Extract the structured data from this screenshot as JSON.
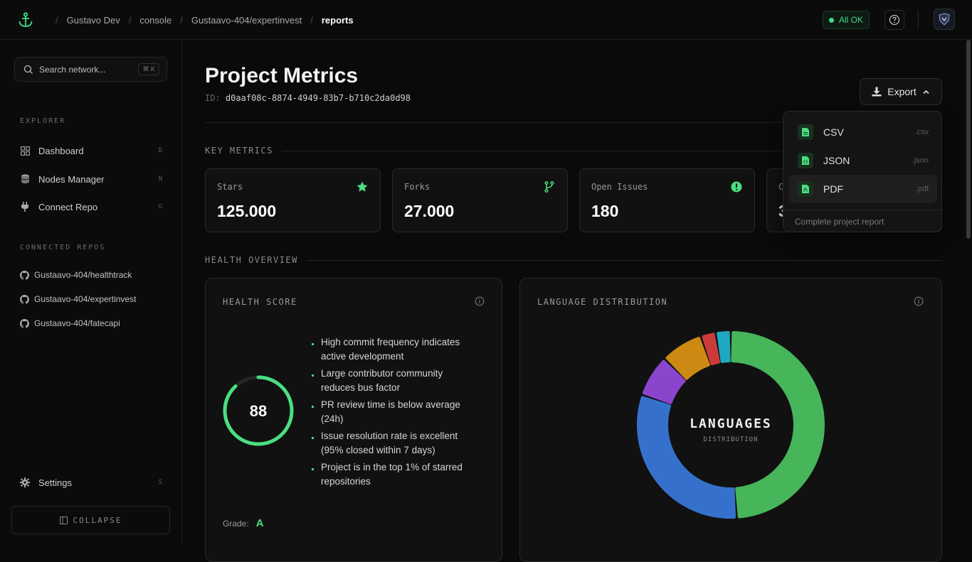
{
  "breadcrumb": [
    "Gustavo Dev",
    "console",
    "Gustaavo-404/expertinvest",
    "reports"
  ],
  "status": {
    "label": "All OK",
    "color": "#3ddc84"
  },
  "sidebar": {
    "search_placeholder": "Search network...",
    "search_shortcut": "⌘ K",
    "explorer_label": "EXPLORER",
    "nav": [
      {
        "label": "Dashboard",
        "hotkey": "D",
        "icon": "dashboard-icon"
      },
      {
        "label": "Nodes Manager",
        "hotkey": "N",
        "icon": "database-icon"
      },
      {
        "label": "Connect Repo",
        "hotkey": "G",
        "icon": "plug-icon"
      }
    ],
    "repos_label": "CONNECTED REPOS",
    "repos": [
      "Gustaavo-404/healthtrack",
      "Gustaavo-404/expertinvest",
      "Gustaavo-404/fatecapi"
    ],
    "settings": {
      "label": "Settings",
      "hotkey": "S"
    },
    "collapse_label": "COLLAPSE"
  },
  "page": {
    "title": "Project Metrics",
    "id_label": "ID:",
    "id_value": "d0aaf08c-8874-4949-83b7-b710c2da0d98",
    "export_label": "Export"
  },
  "key_metrics": {
    "label": "KEY METRICS",
    "cards": [
      {
        "label": "Stars",
        "value": "125.000",
        "icon": "star-icon"
      },
      {
        "label": "Forks",
        "value": "27.000",
        "icon": "fork-icon"
      },
      {
        "label": "Open Issues",
        "value": "180",
        "icon": "alert-icon"
      },
      {
        "label": "C",
        "value": "3",
        "icon": ""
      }
    ]
  },
  "export_menu": {
    "items": [
      {
        "label": "CSV",
        "ext": ".csv"
      },
      {
        "label": "JSON",
        "ext": ".json"
      },
      {
        "label": "PDF",
        "ext": ".pdf"
      }
    ],
    "footer": "Complete project report"
  },
  "health": {
    "section_label": "HEALTH OVERVIEW",
    "title": "HEALTH SCORE",
    "score": "88",
    "score_fraction": 0.88,
    "notes": [
      "High commit frequency indicates active development",
      "Large contributor community reduces bus factor",
      "PR review time is below average (24h)",
      "Issue resolution rate is excellent (95% closed within 7 days)",
      "Project is in the top 1% of starred repositories"
    ],
    "grade_label": "Grade:",
    "grade": "A"
  },
  "languages": {
    "title": "LANGUAGE DISTRIBUTION",
    "center_title": "LANGUAGES",
    "center_sub": "DISTRIBUTION"
  },
  "chart_data": {
    "type": "pie",
    "title": "LANGUAGE DISTRIBUTION",
    "slices": [
      {
        "value": 47,
        "color": "#47b55a"
      },
      {
        "value": 30,
        "color": "#3571cc"
      },
      {
        "value": 7,
        "color": "#8a45cc"
      },
      {
        "value": 7,
        "color": "#cc8a12"
      },
      {
        "value": 2.5,
        "color": "#cc3b3b"
      },
      {
        "value": 2.5,
        "color": "#1fa8bf"
      }
    ]
  },
  "colors": {
    "accent": "#3ddc84",
    "background": "#0a0a0a"
  }
}
